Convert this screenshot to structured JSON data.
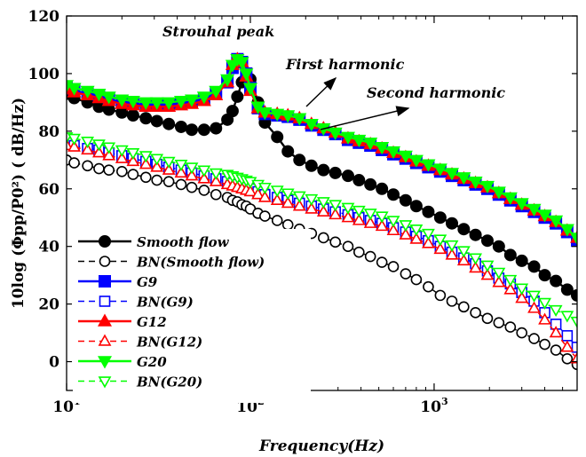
{
  "chart_data": {
    "type": "line",
    "title": "",
    "xlabel": "Frequency(Hz)",
    "ylabel": "10log (Φpp/P0²) ( dB/Hz)",
    "xscale": "log",
    "xlim": [
      10,
      6000
    ],
    "ylim": [
      -10,
      120
    ],
    "xticks": [
      10,
      100,
      1000
    ],
    "xtick_labels": [
      {
        "base": "10",
        "exp": "1"
      },
      {
        "base": "10",
        "exp": "2"
      },
      {
        "base": "10",
        "exp": "3"
      }
    ],
    "yticks": [
      0,
      20,
      40,
      60,
      80,
      100,
      120
    ],
    "grid": false,
    "legend_position": "bottom-left",
    "annotations": [
      {
        "text": "Strouhal peak"
      },
      {
        "text": "First harmonic"
      },
      {
        "text": "Second harmonic"
      }
    ],
    "x": [
      10,
      11,
      13,
      15,
      17,
      20,
      23,
      27,
      31,
      36,
      42,
      48,
      56,
      65,
      75,
      80,
      85,
      90,
      95,
      100,
      110,
      120,
      140,
      160,
      185,
      215,
      250,
      290,
      340,
      390,
      450,
      520,
      600,
      700,
      800,
      930,
      1080,
      1250,
      1450,
      1680,
      1950,
      2250,
      2600,
      3000,
      3500,
      4000,
      4600,
      5300,
      6000
    ],
    "series": [
      {
        "name": "Smooth flow",
        "color": "#000000",
        "marker": "circle",
        "filled": true,
        "dashed": false,
        "values": [
          93,
          91.5,
          90,
          88.5,
          87.5,
          86.5,
          85.5,
          84.5,
          83.5,
          82.5,
          81.5,
          80.5,
          80.5,
          81,
          84,
          87,
          92,
          97,
          99,
          98,
          90,
          83,
          78,
          73,
          70,
          68,
          66.5,
          65.5,
          64.5,
          63,
          61.5,
          60,
          58,
          56,
          54,
          52,
          50,
          48,
          46,
          44,
          42,
          40,
          37,
          35,
          33,
          30,
          28,
          25,
          23
        ]
      },
      {
        "name": "BN(Smooth flow)",
        "color": "#000000",
        "marker": "circle",
        "filled": false,
        "dashed": true,
        "values": [
          70,
          69,
          68,
          67,
          66.5,
          66,
          65,
          64,
          63,
          62.5,
          61.5,
          60.5,
          59.5,
          58,
          57,
          56,
          55.5,
          54.5,
          54,
          53,
          51.5,
          50.5,
          49,
          47.5,
          46,
          44.5,
          43,
          41.5,
          40,
          38,
          36.5,
          34.5,
          33,
          30.5,
          28.5,
          26,
          23,
          21,
          19,
          17,
          15,
          13.5,
          12,
          10,
          8,
          6,
          4,
          1,
          -1
        ]
      },
      {
        "name": "G9",
        "color": "#0000ff",
        "marker": "square",
        "filled": true,
        "dashed": false,
        "values": [
          95,
          94,
          93,
          92,
          91,
          90,
          89.5,
          89,
          89,
          89,
          89.5,
          90,
          91,
          93,
          97,
          102,
          105,
          104,
          100,
          95,
          88,
          86,
          85.5,
          85,
          84,
          82,
          80.5,
          79,
          77,
          76,
          75,
          73.5,
          72,
          70.5,
          69,
          67.5,
          66,
          64.5,
          63,
          61.5,
          60,
          58,
          56,
          54,
          52,
          50,
          48,
          45,
          42
        ]
      },
      {
        "name": "BN(G9)",
        "color": "#0000ff",
        "marker": "square",
        "filled": false,
        "dashed": true,
        "values": [
          76,
          75,
          74,
          73.5,
          72.5,
          71.5,
          70.5,
          69.5,
          68.5,
          67.5,
          66.5,
          65.5,
          64.5,
          63.5,
          62.5,
          62,
          61.5,
          61,
          60.5,
          60,
          59,
          58,
          57,
          56,
          55,
          54,
          53,
          52,
          51,
          50,
          49,
          48,
          46.5,
          45,
          43.5,
          42,
          40,
          38,
          36,
          34,
          31.5,
          29,
          27,
          24,
          21,
          17,
          13,
          9,
          5
        ]
      },
      {
        "name": "G12",
        "color": "#ff0000",
        "marker": "triangle-up",
        "filled": true,
        "dashed": false,
        "values": [
          94.5,
          93.5,
          92.5,
          91.5,
          90.5,
          89.5,
          89,
          88.5,
          88.5,
          88.5,
          89,
          89.5,
          90.5,
          92.5,
          97,
          103,
          105,
          104,
          99,
          94,
          88,
          86.5,
          86,
          85.5,
          84.5,
          82.5,
          81,
          79.5,
          77.5,
          76.5,
          75.5,
          74,
          72.5,
          71,
          69.5,
          68,
          66.5,
          65,
          63.5,
          62,
          60.5,
          58.5,
          56.5,
          54.5,
          52.5,
          50.5,
          48.5,
          45.5,
          43
        ]
      },
      {
        "name": "BN(G12)",
        "color": "#ff0000",
        "marker": "triangle-up",
        "filled": false,
        "dashed": true,
        "values": [
          75,
          74.5,
          73.5,
          72.5,
          71.5,
          70.5,
          69.5,
          68.5,
          67.5,
          66.5,
          65.5,
          64.5,
          63.5,
          62.5,
          61.5,
          61,
          60.5,
          60,
          59.5,
          59,
          58,
          57,
          56,
          55,
          54,
          53,
          52,
          51,
          50,
          49,
          48,
          47,
          45.5,
          44,
          42.5,
          41,
          39,
          37,
          35,
          32.5,
          30,
          27.5,
          25,
          22,
          18.5,
          14.5,
          10,
          5,
          1
        ]
      },
      {
        "name": "G20",
        "color": "#00ff00",
        "marker": "triangle-down",
        "filled": true,
        "dashed": false,
        "values": [
          96,
          95,
          94,
          93,
          92,
          91,
          90.5,
          90,
          90,
          90,
          90.5,
          91,
          92,
          94,
          98,
          103,
          105,
          104,
          100,
          95,
          88.5,
          86.5,
          86,
          85.5,
          84.5,
          82.5,
          81,
          79.5,
          78,
          77,
          76,
          74.5,
          73,
          71.5,
          70,
          68.5,
          67,
          65.5,
          64,
          62.5,
          61,
          59,
          57,
          55,
          53,
          51,
          49,
          46,
          43
        ]
      },
      {
        "name": "BN(G20)",
        "color": "#00ff00",
        "marker": "triangle-down",
        "filled": false,
        "dashed": true,
        "values": [
          78,
          77.5,
          76.5,
          75.5,
          74.5,
          73.5,
          72.5,
          71.5,
          70.5,
          69.5,
          68.5,
          67.5,
          66.5,
          65.5,
          65,
          64.5,
          64,
          63.5,
          63,
          62.5,
          61.5,
          60.5,
          59.5,
          58.5,
          57.5,
          56.5,
          55.5,
          54.5,
          53.5,
          52.5,
          51.5,
          50.5,
          49,
          47.5,
          46,
          44.5,
          42.5,
          40.5,
          38.5,
          36,
          33.5,
          31,
          28.5,
          25.5,
          23,
          20.5,
          18,
          16,
          14
        ]
      }
    ]
  }
}
